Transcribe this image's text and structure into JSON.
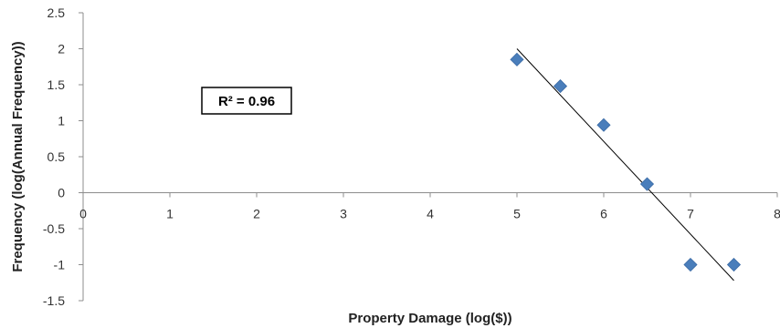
{
  "chart_data": {
    "type": "scatter",
    "title": "",
    "xlabel": "Property Damage (log($))",
    "ylabel": "Frequency (log(Annual Frequency))",
    "xlim": [
      0,
      8
    ],
    "ylim": [
      -1.5,
      2.5
    ],
    "x_ticks": [
      "0",
      "1",
      "2",
      "3",
      "4",
      "5",
      "6",
      "7",
      "8"
    ],
    "y_ticks": [
      "2.5",
      "2",
      "1.5",
      "1",
      "0.5",
      "0",
      "-0.5",
      "-1",
      "-1.5"
    ],
    "grid": false,
    "legend": "none",
    "marker": "diamond",
    "marker_color": "#4a7ebb",
    "series": [
      {
        "x": [
          5.0,
          5.5,
          6.0,
          6.5,
          7.0,
          7.5
        ],
        "y": [
          1.85,
          1.48,
          0.94,
          0.12,
          -1.0,
          -1.0
        ]
      }
    ],
    "trendline": {
      "type": "linear",
      "x": [
        5.0,
        7.5
      ],
      "y": [
        2.0,
        -1.22
      ],
      "color": "#000000"
    },
    "annotation": {
      "text": "R² = 0.96"
    }
  }
}
